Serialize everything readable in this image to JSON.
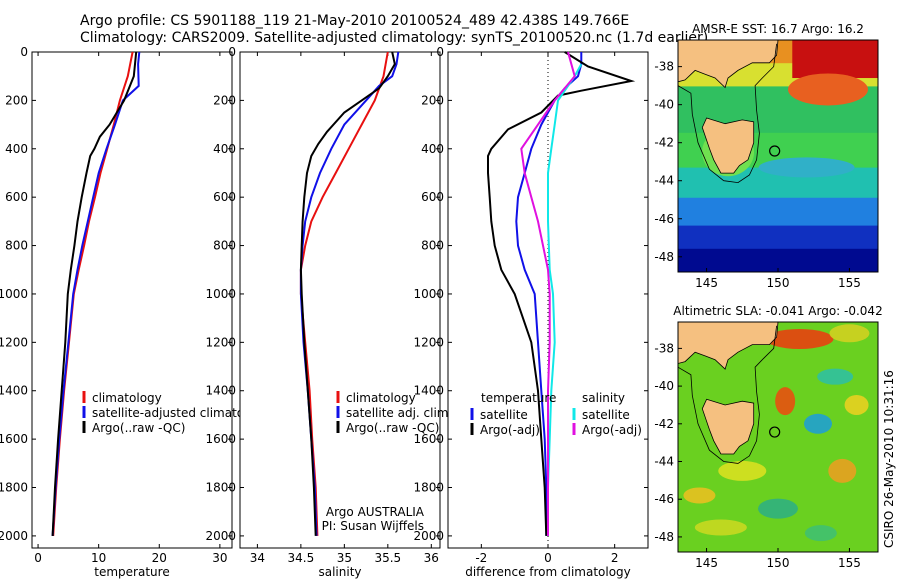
{
  "header": {
    "line1": "Argo profile: CS 5901188_119 21-May-2010 20100524_489 42.438S 149.766E",
    "line2": "Climatology: CARS2009. Satellite-adjusted climatology: synTS_20100520.nc (1.7d earlier)"
  },
  "side_stamp": "CSIRO 26-May-2010 10:31:16",
  "colors": {
    "red": "#e81010",
    "blue": "#1010e8",
    "black": "#000000",
    "cyan": "#10e8e8",
    "magenta": "#e010e0"
  },
  "chart_data": [
    {
      "id": "temperature",
      "type": "line",
      "xlabel": "temperature",
      "ylabel": "",
      "xlim": [
        -1,
        32
      ],
      "ylim": [
        2050,
        0
      ],
      "xticks": [
        0,
        10,
        20,
        30
      ],
      "yticks": [
        0,
        200,
        400,
        600,
        800,
        1000,
        1200,
        1400,
        1600,
        1800,
        2000
      ],
      "legend": [
        "climatology",
        "satellite-adjusted climatology",
        "Argo(..raw -QC)"
      ],
      "series": [
        {
          "name": "climatology",
          "color": "red",
          "points": [
            [
              15.6,
              0
            ],
            [
              15.2,
              50
            ],
            [
              14.8,
              100
            ],
            [
              13.5,
              200
            ],
            [
              12.5,
              300
            ],
            [
              11.4,
              400
            ],
            [
              10.3,
              500
            ],
            [
              9.4,
              600
            ],
            [
              8.4,
              700
            ],
            [
              7.6,
              800
            ],
            [
              6.7,
              900
            ],
            [
              5.9,
              1000
            ],
            [
              5.1,
              1200
            ],
            [
              4.3,
              1400
            ],
            [
              3.6,
              1600
            ],
            [
              3.0,
              1800
            ],
            [
              2.5,
              2000
            ]
          ]
        },
        {
          "name": "satellite-adjusted climatology",
          "color": "blue",
          "points": [
            [
              16.7,
              0
            ],
            [
              16.5,
              50
            ],
            [
              16.6,
              140
            ],
            [
              14.0,
              200
            ],
            [
              12.7,
              300
            ],
            [
              11.3,
              400
            ],
            [
              10.0,
              500
            ],
            [
              9.1,
              600
            ],
            [
              8.2,
              700
            ],
            [
              7.3,
              800
            ],
            [
              6.5,
              900
            ],
            [
              5.8,
              1000
            ],
            [
              5.0,
              1200
            ],
            [
              4.2,
              1400
            ],
            [
              3.5,
              1600
            ],
            [
              2.9,
              1800
            ],
            [
              2.4,
              2000
            ]
          ]
        },
        {
          "name": "Argo(..raw -QC)",
          "color": "black",
          "points": [
            [
              16.2,
              0
            ],
            [
              16.0,
              50
            ],
            [
              15.8,
              100
            ],
            [
              14.2,
              200
            ],
            [
              11.8,
              300
            ],
            [
              10.2,
              350
            ],
            [
              9.3,
              400
            ],
            [
              8.6,
              430
            ],
            [
              8.0,
              500
            ],
            [
              7.2,
              600
            ],
            [
              6.5,
              700
            ],
            [
              6.0,
              800
            ],
            [
              5.4,
              900
            ],
            [
              4.9,
              1000
            ],
            [
              4.5,
              1200
            ],
            [
              3.9,
              1400
            ],
            [
              3.3,
              1600
            ],
            [
              2.8,
              1800
            ],
            [
              2.4,
              2000
            ]
          ]
        }
      ]
    },
    {
      "id": "salinity",
      "type": "line",
      "xlabel": "salinity",
      "ylabel": "",
      "xlim": [
        33.8,
        36.1
      ],
      "ylim": [
        2050,
        0
      ],
      "xticks": [
        34,
        34.5,
        35,
        35.5,
        36
      ],
      "yticks": [
        0,
        200,
        400,
        600,
        800,
        1000,
        1200,
        1400,
        1600,
        1800,
        2000
      ],
      "legend": [
        "climatology",
        "satellite adj. clim.",
        "Argo(..raw -QC)"
      ],
      "annotation": [
        "Argo AUSTRALIA",
        "PI: Susan Wijffels"
      ],
      "series": [
        {
          "name": "climatology",
          "color": "red",
          "points": [
            [
              35.5,
              0
            ],
            [
              35.45,
              100
            ],
            [
              35.35,
              200
            ],
            [
              35.2,
              300
            ],
            [
              35.05,
              400
            ],
            [
              34.9,
              500
            ],
            [
              34.75,
              600
            ],
            [
              34.62,
              700
            ],
            [
              34.55,
              800
            ],
            [
              34.5,
              900
            ],
            [
              34.5,
              1000
            ],
            [
              34.55,
              1200
            ],
            [
              34.6,
              1400
            ],
            [
              34.63,
              1600
            ],
            [
              34.67,
              1800
            ],
            [
              34.69,
              2000
            ]
          ]
        },
        {
          "name": "satellite adj. clim.",
          "color": "blue",
          "points": [
            [
              35.62,
              0
            ],
            [
              35.6,
              50
            ],
            [
              35.55,
              100
            ],
            [
              35.4,
              140
            ],
            [
              35.25,
              200
            ],
            [
              35.0,
              300
            ],
            [
              34.85,
              400
            ],
            [
              34.72,
              500
            ],
            [
              34.62,
              600
            ],
            [
              34.55,
              700
            ],
            [
              34.52,
              800
            ],
            [
              34.5,
              900
            ],
            [
              34.5,
              1000
            ],
            [
              34.53,
              1200
            ],
            [
              34.58,
              1400
            ],
            [
              34.62,
              1600
            ],
            [
              34.66,
              1800
            ],
            [
              34.68,
              2000
            ]
          ]
        },
        {
          "name": "Argo(..raw -QC)",
          "color": "black",
          "points": [
            [
              35.55,
              0
            ],
            [
              35.58,
              50
            ],
            [
              35.5,
              100
            ],
            [
              35.4,
              150
            ],
            [
              35.2,
              200
            ],
            [
              35.0,
              250
            ],
            [
              34.8,
              330
            ],
            [
              34.7,
              380
            ],
            [
              34.62,
              430
            ],
            [
              34.57,
              500
            ],
            [
              34.54,
              600
            ],
            [
              34.52,
              700
            ],
            [
              34.51,
              800
            ],
            [
              34.5,
              900
            ],
            [
              34.51,
              1000
            ],
            [
              34.54,
              1200
            ],
            [
              34.58,
              1400
            ],
            [
              34.62,
              1600
            ],
            [
              34.65,
              1800
            ],
            [
              34.67,
              2000
            ]
          ]
        }
      ]
    },
    {
      "id": "difference",
      "type": "line",
      "xlabel": "difference from climatology",
      "ylabel": "",
      "xlim": [
        -3.0,
        3.0
      ],
      "ylim": [
        2050,
        0
      ],
      "xticks": [
        -2,
        0,
        2
      ],
      "yticks": [
        0,
        200,
        400,
        600,
        800,
        1000,
        1200,
        1400,
        1600,
        1800,
        2000
      ],
      "legend_left_title": "temperature",
      "legend_right_title": "salinity",
      "legend": [
        "satellite",
        "Argo(-adj)",
        "satellite",
        "Argo(-adj)"
      ],
      "series": [
        {
          "name": "temperature satellite",
          "color": "blue",
          "points": [
            [
              1.0,
              0
            ],
            [
              1.0,
              50
            ],
            [
              0.9,
              100
            ],
            [
              0.5,
              150
            ],
            [
              0.2,
              200
            ],
            [
              -0.2,
              300
            ],
            [
              -0.5,
              400
            ],
            [
              -0.7,
              500
            ],
            [
              -0.9,
              600
            ],
            [
              -0.95,
              700
            ],
            [
              -0.9,
              800
            ],
            [
              -0.7,
              900
            ],
            [
              -0.4,
              1000
            ],
            [
              -0.3,
              1200
            ],
            [
              -0.2,
              1400
            ],
            [
              -0.1,
              1600
            ],
            [
              -0.05,
              1800
            ],
            [
              -0.05,
              2000
            ]
          ]
        },
        {
          "name": "temperature Argo(-adj)",
          "color": "black",
          "points": [
            [
              0.5,
              0
            ],
            [
              1.2,
              60
            ],
            [
              2.5,
              120
            ],
            [
              1.0,
              160
            ],
            [
              0.3,
              180
            ],
            [
              -0.2,
              250
            ],
            [
              -1.2,
              320
            ],
            [
              -1.7,
              400
            ],
            [
              -1.8,
              430
            ],
            [
              -1.8,
              500
            ],
            [
              -1.75,
              600
            ],
            [
              -1.7,
              700
            ],
            [
              -1.6,
              800
            ],
            [
              -1.4,
              900
            ],
            [
              -1.0,
              1000
            ],
            [
              -0.5,
              1200
            ],
            [
              -0.3,
              1400
            ],
            [
              -0.2,
              1600
            ],
            [
              -0.1,
              1800
            ],
            [
              -0.05,
              2000
            ]
          ]
        },
        {
          "name": "salinity satellite",
          "color": "cyan",
          "points": [
            [
              1.0,
              50
            ],
            [
              0.8,
              100
            ],
            [
              0.3,
              200
            ],
            [
              0.2,
              300
            ],
            [
              0.1,
              400
            ],
            [
              0.0,
              500
            ],
            [
              0.0,
              700
            ],
            [
              0.05,
              900
            ],
            [
              0.15,
              1000
            ],
            [
              0.2,
              1200
            ],
            [
              0.1,
              1400
            ],
            [
              0.05,
              1600
            ],
            [
              0.0,
              1800
            ],
            [
              0.0,
              2000
            ]
          ]
        },
        {
          "name": "salinity Argo(-adj)",
          "color": "magenta",
          "points": [
            [
              0.6,
              0
            ],
            [
              0.8,
              100
            ],
            [
              0.2,
              200
            ],
            [
              -0.3,
              300
            ],
            [
              -0.8,
              400
            ],
            [
              -0.7,
              500
            ],
            [
              -0.5,
              600
            ],
            [
              -0.3,
              700
            ],
            [
              -0.15,
              800
            ],
            [
              0.0,
              900
            ],
            [
              0.05,
              1000
            ],
            [
              0.05,
              1200
            ],
            [
              0.0,
              1400
            ],
            [
              0.0,
              1600
            ],
            [
              0.0,
              1800
            ],
            [
              0.0,
              2000
            ]
          ]
        }
      ]
    },
    {
      "id": "map_sst",
      "type": "heatmap",
      "title": "AMSR-E SST: 16.7 Argo: 16.2",
      "xticks": [
        145,
        150,
        155
      ],
      "yticks": [
        -38,
        -40,
        -42,
        -44,
        -46,
        -48
      ],
      "xlim": [
        143,
        157
      ],
      "ylim": [
        -48.8,
        -36.6
      ],
      "marker": [
        149.766,
        -42.438
      ]
    },
    {
      "id": "map_sla",
      "type": "heatmap",
      "title": "Altimetric SLA: -0.041 Argo: -0.042",
      "xticks": [
        145,
        150,
        155
      ],
      "yticks": [
        -38,
        -40,
        -42,
        -44,
        -46,
        -48
      ],
      "xlim": [
        143,
        157
      ],
      "ylim": [
        -48.8,
        -36.6
      ],
      "marker": [
        149.766,
        -42.438
      ]
    }
  ]
}
